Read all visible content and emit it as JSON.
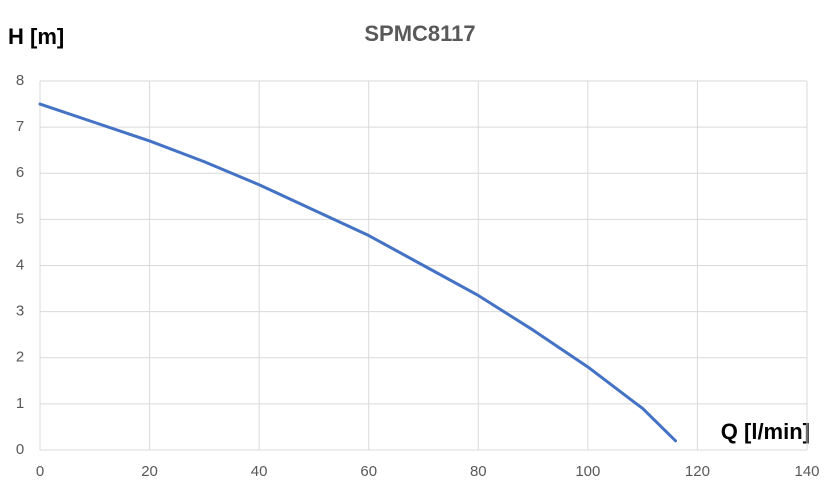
{
  "chart_data": {
    "type": "line",
    "title": "SPMC8117",
    "y_label": "H [m]",
    "x_label": "Q [l/min]",
    "x": [
      0,
      10,
      20,
      30,
      40,
      50,
      60,
      70,
      80,
      90,
      100,
      110,
      116
    ],
    "series": [
      {
        "name": "SPMC8117",
        "color": "#4472c4",
        "values": [
          7.5,
          7.1,
          6.7,
          6.25,
          5.75,
          5.2,
          4.65,
          4.0,
          3.35,
          2.6,
          1.8,
          0.9,
          0.2
        ]
      }
    ],
    "xlim": [
      0,
      140
    ],
    "xticks": [
      0,
      20,
      40,
      60,
      80,
      100,
      120,
      140
    ],
    "ylim": [
      0,
      8
    ],
    "yticks": [
      0,
      1,
      2,
      3,
      4,
      5,
      6,
      7,
      8
    ],
    "grid": true
  }
}
